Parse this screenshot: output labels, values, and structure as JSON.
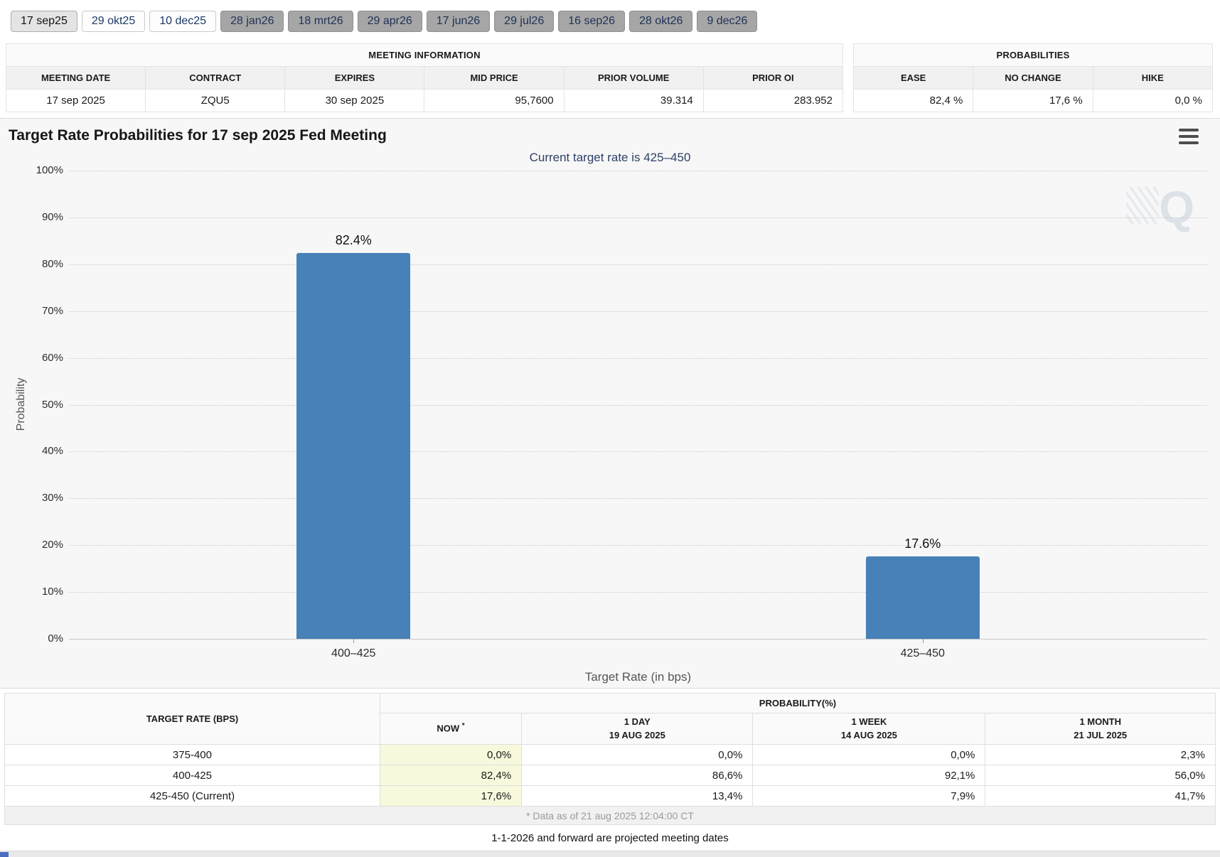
{
  "colors": {
    "bar": "#4781b7",
    "subtitle": "#2e4066",
    "now_column": "#f8f8dc",
    "tab_active_bg": "#e4e4e4",
    "tab_inactive_bg": "#a6a6a6",
    "panel_bg": "#f7f7f7",
    "footer_strip_blue": "#4a6cc0"
  },
  "tabs": {
    "items": [
      {
        "label": "17 sep25",
        "style": "active"
      },
      {
        "label": "29 okt25",
        "style": "light"
      },
      {
        "label": "10 dec25",
        "style": "light"
      },
      {
        "label": "28 jan26",
        "style": "dark"
      },
      {
        "label": "18 mrt26",
        "style": "dark"
      },
      {
        "label": "29 apr26",
        "style": "dark"
      },
      {
        "label": "17 jun26",
        "style": "dark"
      },
      {
        "label": "29 jul26",
        "style": "dark"
      },
      {
        "label": "16 sep26",
        "style": "dark"
      },
      {
        "label": "28 okt26",
        "style": "dark"
      },
      {
        "label": "9 dec26",
        "style": "dark"
      }
    ]
  },
  "meeting_info": {
    "title": "MEETING INFORMATION",
    "headers": [
      "MEETING DATE",
      "CONTRACT",
      "EXPIRES",
      "MID PRICE",
      "PRIOR VOLUME",
      "PRIOR OI"
    ],
    "values": [
      "17 sep 2025",
      "ZQU5",
      "30 sep 2025",
      "95,7600",
      "39.314",
      "283.952"
    ],
    "align": [
      "center",
      "center",
      "center",
      "right",
      "right",
      "right"
    ]
  },
  "probabilities_box": {
    "title": "PROBABILITIES",
    "headers": [
      "EASE",
      "NO CHANGE",
      "HIKE"
    ],
    "values": [
      "82,4 %",
      "17,6 %",
      "0,0 %"
    ]
  },
  "chart": {
    "title": "Target Rate Probabilities for 17 sep 2025 Fed Meeting",
    "subtitle": "Current target rate is 425–450",
    "menu_icon": "hamburger-icon",
    "watermark_letter": "Q"
  },
  "chart_data": {
    "type": "bar",
    "title": "Target Rate Probabilities for 17 sep 2025 Fed Meeting",
    "subtitle": "Current target rate is 425–450",
    "categories": [
      "400–425",
      "425–450"
    ],
    "values": [
      82.4,
      17.6
    ],
    "bar_labels": [
      "82.4%",
      "17.6%"
    ],
    "xlabel": "Target Rate (in bps)",
    "ylabel": "Probability",
    "ylim": [
      0,
      100
    ],
    "ytick_step": 10,
    "ytick_labels": [
      "100%",
      "90%",
      "80%",
      "70%",
      "60%",
      "50%",
      "40%",
      "30%",
      "20%",
      "10%",
      "0%"
    ],
    "grid": "dotted horizontal gridlines",
    "legend": "none",
    "bar_color": "#4781b7"
  },
  "prob_table": {
    "rate_header": "TARGET RATE (BPS)",
    "group_header": "PROBABILITY(%)",
    "columns": [
      {
        "label": "NOW",
        "marker": "*",
        "sub": ""
      },
      {
        "label": "1 DAY",
        "sub": "19 AUG 2025"
      },
      {
        "label": "1 WEEK",
        "sub": "14 AUG 2025"
      },
      {
        "label": "1 MONTH",
        "sub": "21 JUL 2025"
      }
    ],
    "rows": [
      {
        "rate": "375-400",
        "values": [
          "0,0%",
          "0,0%",
          "0,0%",
          "2,3%"
        ]
      },
      {
        "rate": "400-425",
        "values": [
          "82,4%",
          "86,6%",
          "92,1%",
          "56,0%"
        ]
      },
      {
        "rate": "425-450 (Current)",
        "values": [
          "17,6%",
          "13,4%",
          "7,9%",
          "41,7%"
        ]
      }
    ],
    "footnote": "* Data as of 21 aug 2025 12:04:00 CT"
  },
  "footer": {
    "note": "1-1-2026 and forward are projected meeting dates"
  }
}
